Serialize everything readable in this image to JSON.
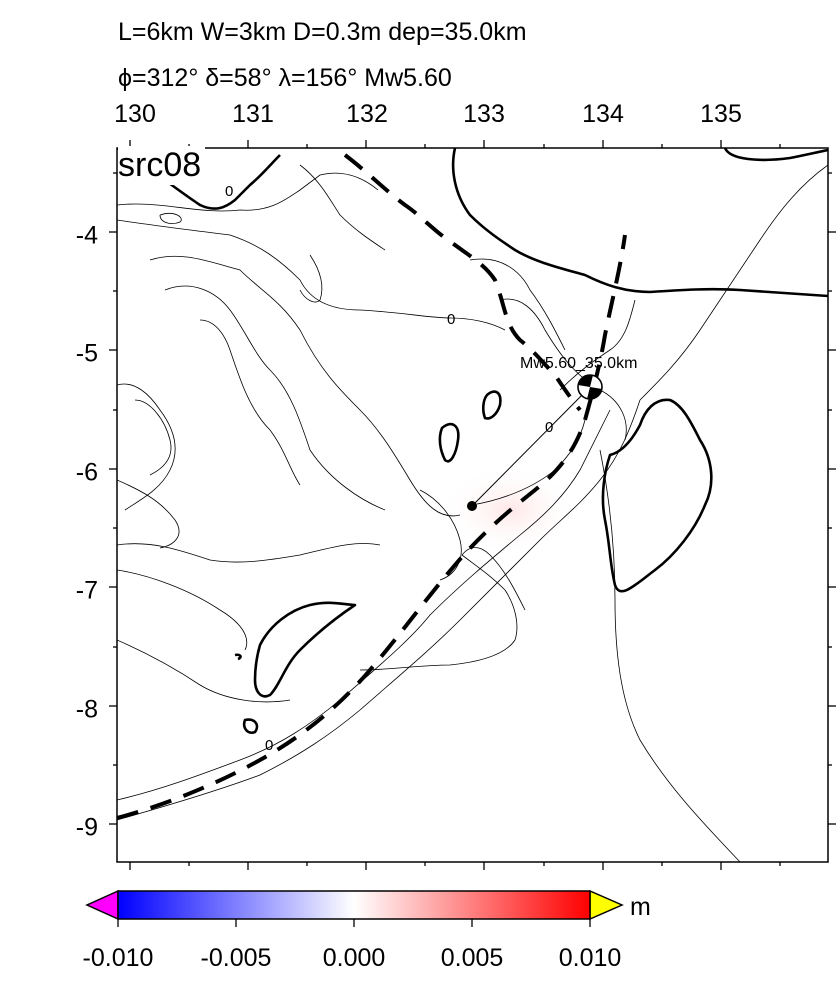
{
  "header": {
    "line1": "L=6km W=3km D=0.3m dep=35.0km",
    "line2": "ϕ=312° δ=58° λ=156° Mw5.60"
  },
  "map": {
    "panel_label": "src08",
    "x_ticks": [
      "130",
      "131",
      "132",
      "133",
      "134",
      "135"
    ],
    "y_ticks": [
      "-4",
      "-5",
      "-6",
      "-7",
      "-8",
      "-9"
    ],
    "contour_labels": [
      "0",
      "0",
      "0",
      "0"
    ],
    "event_label": "Mw5.60_35.0km"
  },
  "colorbar": {
    "ticks": [
      "-0.010",
      "-0.005",
      "0.000",
      "0.005",
      "0.010"
    ],
    "unit": "m",
    "colors": {
      "min": "#0000ff",
      "mid": "#ffffff",
      "max": "#ff0000",
      "under": "#ff00ff",
      "over": "#ffff00"
    }
  }
}
